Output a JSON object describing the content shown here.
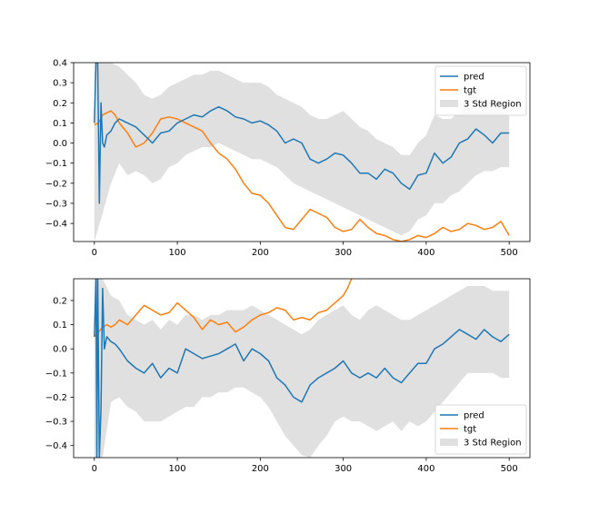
{
  "chart_data": [
    {
      "type": "line",
      "xlim": [
        -25,
        525
      ],
      "ylim": [
        -0.49,
        0.4
      ],
      "x_ticks": [
        0,
        100,
        200,
        300,
        400,
        500
      ],
      "y_ticks": [
        -0.4,
        -0.3,
        -0.2,
        -0.1,
        0.0,
        0.1,
        0.2,
        0.3,
        0.4
      ],
      "y_tick_labels": [
        "−0.4",
        "−0.3",
        "−0.2",
        "−0.1",
        "0.0",
        "0.1",
        "0.2",
        "0.3",
        "0.4"
      ],
      "grid": false,
      "legend_position": "top-right",
      "legend": [
        "pred",
        "tgt",
        "3 Std Region"
      ],
      "series": [
        {
          "name": "pred",
          "color": "#1f77b4",
          "x": [
            0,
            2,
            4,
            6,
            8,
            10,
            12,
            15,
            20,
            25,
            30,
            40,
            50,
            60,
            70,
            80,
            90,
            100,
            110,
            120,
            130,
            140,
            150,
            160,
            170,
            180,
            190,
            200,
            210,
            220,
            230,
            240,
            250,
            260,
            270,
            280,
            290,
            300,
            310,
            320,
            330,
            340,
            350,
            360,
            370,
            380,
            390,
            400,
            410,
            420,
            430,
            440,
            450,
            460,
            470,
            480,
            490,
            500
          ],
          "y": [
            0.1,
            0.4,
            0.4,
            -0.3,
            0.2,
            0.0,
            -0.02,
            0.04,
            0.06,
            0.1,
            0.12,
            0.1,
            0.08,
            0.04,
            0.0,
            0.05,
            0.06,
            0.1,
            0.12,
            0.14,
            0.13,
            0.16,
            0.18,
            0.16,
            0.13,
            0.12,
            0.1,
            0.11,
            0.09,
            0.06,
            0.0,
            0.02,
            0.0,
            -0.08,
            -0.1,
            -0.08,
            -0.05,
            -0.06,
            -0.1,
            -0.15,
            -0.15,
            -0.18,
            -0.13,
            -0.15,
            -0.2,
            -0.23,
            -0.16,
            -0.15,
            -0.05,
            -0.1,
            -0.07,
            0.0,
            0.02,
            0.07,
            0.04,
            0.0,
            0.05,
            0.05
          ]
        },
        {
          "name": "tgt",
          "color": "#ff7f0e",
          "x": [
            0,
            5,
            10,
            15,
            20,
            25,
            30,
            40,
            50,
            60,
            70,
            80,
            90,
            100,
            110,
            120,
            130,
            140,
            150,
            160,
            170,
            180,
            190,
            200,
            210,
            220,
            230,
            240,
            250,
            260,
            270,
            280,
            290,
            300,
            310,
            320,
            330,
            340,
            350,
            360,
            370,
            380,
            390,
            400,
            410,
            420,
            430,
            440,
            450,
            460,
            470,
            480,
            490,
            500
          ],
          "y": [
            0.09,
            0.1,
            0.14,
            0.15,
            0.16,
            0.14,
            0.1,
            0.05,
            -0.02,
            0.0,
            0.05,
            0.12,
            0.13,
            0.12,
            0.1,
            0.08,
            0.06,
            0.0,
            -0.05,
            -0.08,
            -0.13,
            -0.2,
            -0.25,
            -0.26,
            -0.3,
            -0.36,
            -0.42,
            -0.43,
            -0.38,
            -0.33,
            -0.35,
            -0.37,
            -0.42,
            -0.44,
            -0.43,
            -0.38,
            -0.42,
            -0.45,
            -0.46,
            -0.48,
            -0.49,
            -0.48,
            -0.46,
            -0.47,
            -0.45,
            -0.42,
            -0.44,
            -0.43,
            -0.4,
            -0.41,
            -0.43,
            -0.42,
            -0.39,
            -0.46
          ]
        },
        {
          "name": "3 Std Region",
          "color": "#e0e0e0",
          "x": [
            0,
            10,
            20,
            30,
            40,
            50,
            60,
            70,
            80,
            90,
            100,
            110,
            120,
            130,
            140,
            150,
            160,
            170,
            180,
            190,
            200,
            210,
            220,
            230,
            240,
            250,
            260,
            270,
            280,
            290,
            300,
            310,
            320,
            330,
            340,
            350,
            360,
            370,
            380,
            390,
            400,
            410,
            420,
            430,
            440,
            450,
            460,
            470,
            480,
            490,
            500
          ],
          "upper": [
            0.4,
            0.4,
            0.4,
            0.38,
            0.34,
            0.3,
            0.24,
            0.22,
            0.24,
            0.28,
            0.3,
            0.32,
            0.34,
            0.34,
            0.36,
            0.36,
            0.34,
            0.32,
            0.3,
            0.3,
            0.3,
            0.28,
            0.24,
            0.22,
            0.2,
            0.18,
            0.14,
            0.12,
            0.12,
            0.14,
            0.16,
            0.12,
            0.08,
            0.06,
            0.02,
            0.0,
            -0.02,
            -0.06,
            -0.06,
            0.0,
            0.04,
            0.14,
            0.12,
            0.12,
            0.16,
            0.22,
            0.24,
            0.2,
            0.2,
            0.2,
            0.2
          ],
          "lower": [
            -0.49,
            -0.35,
            -0.2,
            -0.1,
            -0.16,
            -0.14,
            -0.16,
            -0.2,
            -0.18,
            -0.12,
            -0.1,
            -0.06,
            -0.04,
            -0.02,
            -0.02,
            0.0,
            -0.02,
            -0.04,
            -0.06,
            -0.08,
            -0.08,
            -0.1,
            -0.12,
            -0.16,
            -0.2,
            -0.22,
            -0.24,
            -0.26,
            -0.28,
            -0.3,
            -0.32,
            -0.34,
            -0.36,
            -0.38,
            -0.4,
            -0.42,
            -0.44,
            -0.46,
            -0.44,
            -0.38,
            -0.36,
            -0.3,
            -0.3,
            -0.26,
            -0.24,
            -0.2,
            -0.16,
            -0.14,
            -0.14,
            -0.12,
            -0.12
          ]
        }
      ]
    },
    {
      "type": "line",
      "xlim": [
        -25,
        525
      ],
      "ylim": [
        -0.45,
        0.29
      ],
      "x_ticks": [
        0,
        100,
        200,
        300,
        400,
        500
      ],
      "y_ticks": [
        -0.4,
        -0.3,
        -0.2,
        -0.1,
        0.0,
        0.1,
        0.2
      ],
      "y_tick_labels": [
        "−0.4",
        "−0.3",
        "−0.2",
        "−0.1",
        "0.0",
        "0.1",
        "0.2"
      ],
      "grid": false,
      "legend_position": "bottom-right",
      "legend": [
        "pred",
        "tgt",
        "3 Std Region"
      ],
      "series": [
        {
          "name": "pred",
          "color": "#1f77b4",
          "x": [
            0,
            2,
            3,
            4,
            6,
            8,
            10,
            12,
            15,
            20,
            25,
            30,
            40,
            50,
            60,
            70,
            80,
            90,
            100,
            110,
            120,
            130,
            140,
            150,
            160,
            170,
            180,
            190,
            200,
            210,
            220,
            230,
            240,
            250,
            260,
            270,
            280,
            290,
            300,
            310,
            320,
            330,
            340,
            350,
            360,
            370,
            380,
            390,
            400,
            410,
            420,
            430,
            440,
            450,
            460,
            470,
            480,
            490,
            500
          ],
          "y": [
            0.05,
            0.29,
            -0.45,
            0.29,
            -0.45,
            -0.25,
            0.25,
            0.0,
            0.05,
            0.03,
            0.02,
            0.0,
            -0.05,
            -0.08,
            -0.1,
            -0.06,
            -0.12,
            -0.08,
            -0.1,
            0.0,
            -0.02,
            -0.04,
            -0.03,
            -0.02,
            0.0,
            0.02,
            -0.05,
            0.0,
            -0.02,
            -0.05,
            -0.12,
            -0.15,
            -0.2,
            -0.22,
            -0.15,
            -0.12,
            -0.1,
            -0.08,
            -0.05,
            -0.1,
            -0.12,
            -0.1,
            -0.12,
            -0.08,
            -0.12,
            -0.14,
            -0.1,
            -0.06,
            -0.06,
            0.0,
            0.02,
            0.05,
            0.08,
            0.06,
            0.04,
            0.08,
            0.05,
            0.03,
            0.06
          ]
        },
        {
          "name": "tgt",
          "color": "#ff7f0e",
          "x": [
            0,
            5,
            10,
            15,
            20,
            25,
            30,
            40,
            50,
            60,
            70,
            80,
            90,
            100,
            110,
            120,
            130,
            140,
            150,
            160,
            170,
            180,
            190,
            200,
            210,
            220,
            230,
            240,
            250,
            260,
            270,
            280,
            290,
            300,
            305,
            310
          ],
          "y": [
            0.05,
            0.07,
            0.09,
            0.1,
            0.09,
            0.1,
            0.12,
            0.1,
            0.14,
            0.18,
            0.16,
            0.14,
            0.15,
            0.19,
            0.16,
            0.13,
            0.08,
            0.12,
            0.1,
            0.11,
            0.07,
            0.09,
            0.12,
            0.14,
            0.15,
            0.17,
            0.16,
            0.12,
            0.13,
            0.12,
            0.15,
            0.16,
            0.19,
            0.22,
            0.25,
            0.29
          ]
        },
        {
          "name": "3 Std Region",
          "color": "#e0e0e0",
          "x": [
            0,
            10,
            20,
            30,
            40,
            50,
            60,
            70,
            80,
            90,
            100,
            110,
            120,
            130,
            140,
            150,
            160,
            170,
            180,
            190,
            200,
            210,
            220,
            230,
            240,
            250,
            260,
            270,
            280,
            290,
            300,
            310,
            320,
            330,
            340,
            350,
            360,
            370,
            380,
            390,
            400,
            410,
            420,
            430,
            440,
            450,
            460,
            470,
            480,
            490,
            500
          ],
          "upper": [
            0.29,
            0.29,
            0.22,
            0.2,
            0.14,
            0.12,
            0.1,
            0.12,
            0.08,
            0.12,
            0.1,
            0.14,
            0.14,
            0.12,
            0.14,
            0.14,
            0.16,
            0.16,
            0.16,
            0.18,
            0.16,
            0.14,
            0.12,
            0.1,
            0.08,
            0.06,
            0.08,
            0.12,
            0.14,
            0.16,
            0.18,
            0.14,
            0.12,
            0.16,
            0.18,
            0.16,
            0.14,
            0.12,
            0.12,
            0.14,
            0.16,
            0.18,
            0.2,
            0.22,
            0.24,
            0.26,
            0.26,
            0.26,
            0.24,
            0.24,
            0.24
          ],
          "lower": [
            -0.45,
            -0.45,
            -0.22,
            -0.2,
            -0.24,
            -0.26,
            -0.3,
            -0.3,
            -0.3,
            -0.28,
            -0.26,
            -0.24,
            -0.24,
            -0.2,
            -0.2,
            -0.18,
            -0.18,
            -0.16,
            -0.16,
            -0.18,
            -0.2,
            -0.24,
            -0.3,
            -0.36,
            -0.4,
            -0.44,
            -0.45,
            -0.4,
            -0.36,
            -0.3,
            -0.28,
            -0.3,
            -0.3,
            -0.32,
            -0.34,
            -0.32,
            -0.3,
            -0.34,
            -0.3,
            -0.32,
            -0.3,
            -0.26,
            -0.22,
            -0.18,
            -0.14,
            -0.1,
            -0.1,
            -0.1,
            -0.1,
            -0.12,
            -0.12
          ]
        }
      ]
    }
  ]
}
